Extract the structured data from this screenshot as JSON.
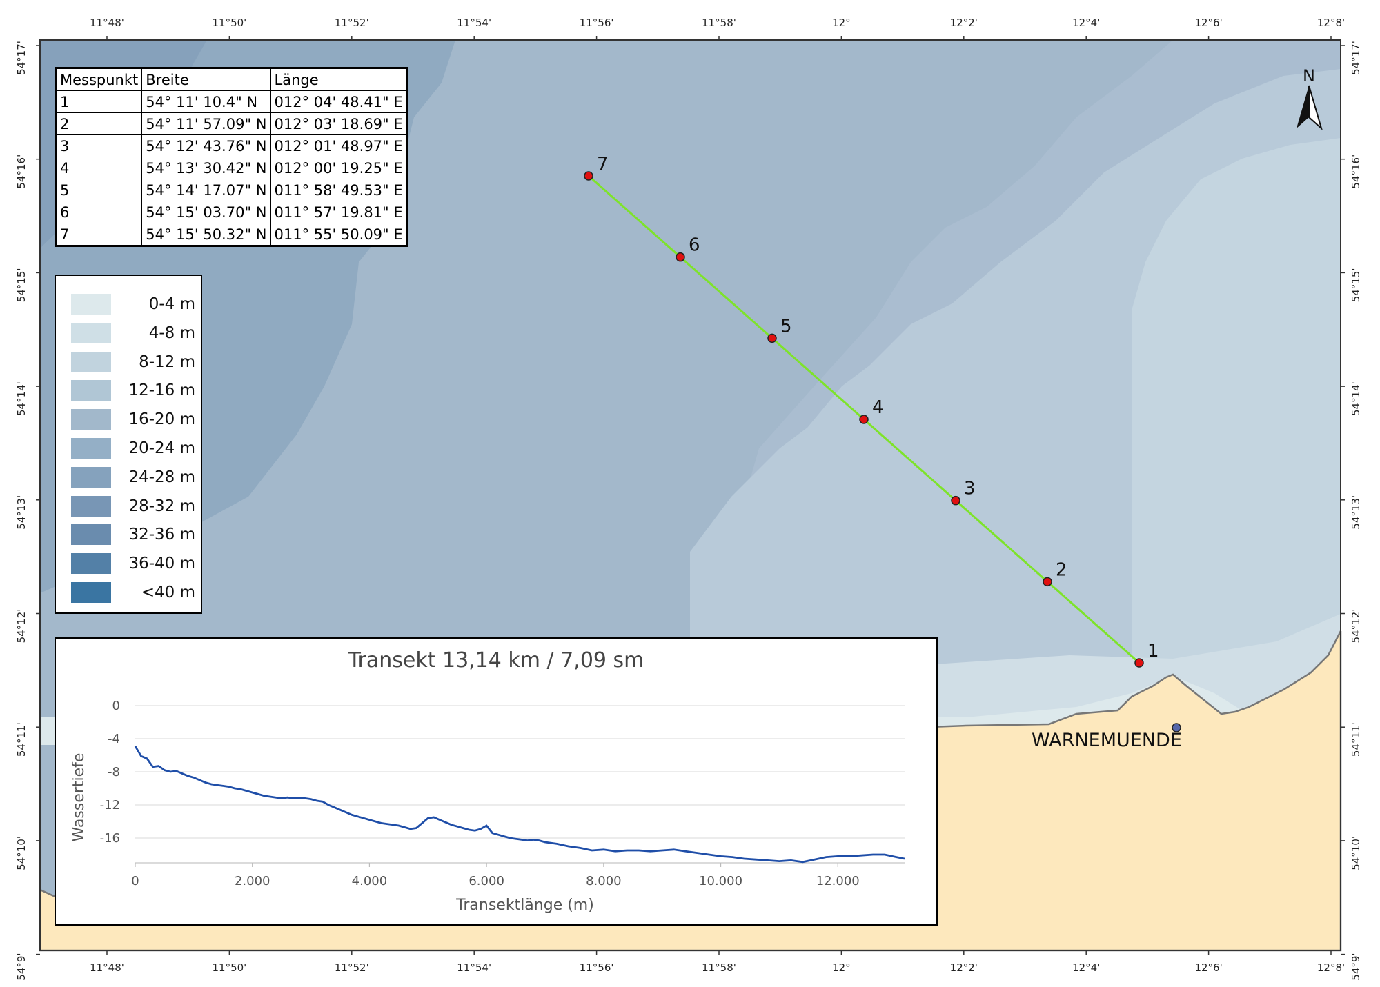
{
  "map": {
    "top_lon_ticks": [
      "11°48'",
      "11°50'",
      "11°52'",
      "11°54'",
      "11°56'",
      "11°58'",
      "12°",
      "12°2'",
      "12°4'",
      "12°6'",
      "12°8'"
    ],
    "bottom_lon_ticks": [
      "11°48'",
      "11°50'",
      "11°52'",
      "11°54'",
      "11°56'",
      "11°58'",
      "12°",
      "12°2'",
      "12°4'",
      "12°6'",
      "12°8'"
    ],
    "left_lat_ticks": [
      "54°17'",
      "54°16'",
      "54°15'",
      "54°14'",
      "54°13'",
      "54°12'",
      "54°11'",
      "54°10'",
      "54°9'"
    ],
    "right_lat_ticks": [
      "54°17'",
      "54°16'",
      "54°15'",
      "54°14'",
      "54°13'",
      "54°12'",
      "54°11'",
      "54°10'",
      "54°9'"
    ],
    "north_label": "N",
    "place_label": "WARNEMUENDE",
    "transect_color": "#7ee32a",
    "point_color": "#e01010",
    "land_color": "#fde8bd",
    "point_labels": [
      "1",
      "2",
      "3",
      "4",
      "5",
      "6",
      "7"
    ]
  },
  "coord_table": {
    "headers": [
      "Messpunkt",
      "Breite",
      "Länge"
    ],
    "rows": [
      [
        "1",
        "54° 11' 10.4\" N",
        "012° 04' 48.41\" E"
      ],
      [
        "2",
        "54° 11' 57.09\" N",
        "012° 03' 18.69\" E"
      ],
      [
        "3",
        "54° 12' 43.76\" N",
        "012° 01' 48.97\" E"
      ],
      [
        "4",
        "54° 13' 30.42\" N",
        "012° 00' 19.25\" E"
      ],
      [
        "5",
        "54° 14' 17.07\" N",
        "011° 58' 49.53\" E"
      ],
      [
        "6",
        "54° 15' 03.70\" N",
        "011° 57' 19.81\" E"
      ],
      [
        "7",
        "54° 15' 50.32\" N",
        "011° 55' 50.09\" E"
      ]
    ]
  },
  "depth_legend": {
    "items": [
      {
        "label": "0-4 m",
        "color": "#dde9ec"
      },
      {
        "label": "4-8 m",
        "color": "#cfdfe6"
      },
      {
        "label": "8-12 m",
        "color": "#c1d3de"
      },
      {
        "label": "12-16 m",
        "color": "#b0c6d5"
      },
      {
        "label": "16-20 m",
        "color": "#a2b8cb"
      },
      {
        "label": "20-24 m",
        "color": "#94afc6"
      },
      {
        "label": "24-28 m",
        "color": "#85a2bd"
      },
      {
        "label": "28-32 m",
        "color": "#7896b5"
      },
      {
        "label": "32-36 m",
        "color": "#6a8cae"
      },
      {
        "label": "36-40 m",
        "color": "#5380a7"
      },
      {
        "label": "<40 m",
        "color": "#3a75a2"
      }
    ]
  },
  "chart_data": {
    "type": "line",
    "title": "Transekt 13,14 km / 7,09 sm",
    "xlabel": "Transektlänge (m)",
    "ylabel": "Wassertiefe",
    "xlim": [
      0,
      13140
    ],
    "ylim": [
      -19,
      1
    ],
    "x_ticks": [
      0,
      2000,
      4000,
      6000,
      8000,
      10000,
      12000
    ],
    "x_tick_labels": [
      "0",
      "2.000",
      "4.000",
      "6.000",
      "8.000",
      "10.000",
      "12.000"
    ],
    "y_ticks": [
      0,
      -4,
      -8,
      -12,
      -16
    ],
    "y_tick_labels": [
      "0",
      "-4",
      "-8",
      "-12",
      "-16"
    ],
    "line_color": "#1f4ea8",
    "series": [
      {
        "name": "Wassertiefe",
        "x": [
          0,
          100,
          200,
          300,
          400,
          500,
          600,
          700,
          800,
          900,
          1000,
          1100,
          1200,
          1300,
          1400,
          1500,
          1600,
          1700,
          1800,
          1900,
          2000,
          2100,
          2200,
          2300,
          2400,
          2500,
          2600,
          2700,
          2800,
          2900,
          3000,
          3100,
          3200,
          3300,
          3400,
          3500,
          3600,
          3700,
          3800,
          3900,
          4000,
          4100,
          4200,
          4300,
          4400,
          4500,
          4600,
          4700,
          4800,
          4900,
          5000,
          5100,
          5200,
          5300,
          5400,
          5500,
          5600,
          5700,
          5800,
          5900,
          6000,
          6100,
          6200,
          6300,
          6400,
          6500,
          6600,
          6700,
          6800,
          6900,
          7000,
          7200,
          7400,
          7600,
          7800,
          8000,
          8200,
          8400,
          8600,
          8800,
          9000,
          9200,
          9400,
          9600,
          9800,
          10000,
          10200,
          10400,
          10600,
          10800,
          11000,
          11200,
          11400,
          11600,
          11800,
          12000,
          12200,
          12400,
          12600,
          12800,
          13000,
          13140
        ],
        "y": [
          -4.9,
          -6.1,
          -6.4,
          -7.4,
          -7.3,
          -7.8,
          -8.0,
          -7.9,
          -8.2,
          -8.5,
          -8.7,
          -9.0,
          -9.3,
          -9.5,
          -9.6,
          -9.7,
          -9.8,
          -10.0,
          -10.1,
          -10.3,
          -10.5,
          -10.7,
          -10.9,
          -11.0,
          -11.1,
          -11.2,
          -11.1,
          -11.2,
          -11.2,
          -11.2,
          -11.3,
          -11.5,
          -11.6,
          -12.0,
          -12.3,
          -12.6,
          -12.9,
          -13.2,
          -13.4,
          -13.6,
          -13.8,
          -14.0,
          -14.2,
          -14.3,
          -14.4,
          -14.5,
          -14.7,
          -14.9,
          -14.8,
          -14.2,
          -13.6,
          -13.5,
          -13.8,
          -14.1,
          -14.4,
          -14.6,
          -14.8,
          -15.0,
          -15.1,
          -14.9,
          -14.5,
          -15.4,
          -15.6,
          -15.8,
          -16.0,
          -16.1,
          -16.2,
          -16.3,
          -16.2,
          -16.3,
          -16.5,
          -16.7,
          -17.0,
          -17.2,
          -17.5,
          -17.4,
          -17.6,
          -17.5,
          -17.5,
          -17.6,
          -17.5,
          -17.4,
          -17.6,
          -17.8,
          -18.0,
          -18.2,
          -18.3,
          -18.5,
          -18.6,
          -18.7,
          -18.8,
          -18.7,
          -18.9,
          -18.6,
          -18.3,
          -18.2,
          -18.2,
          -18.1,
          -18.0,
          -18.0,
          -18.3,
          -18.5
        ]
      }
    ]
  }
}
